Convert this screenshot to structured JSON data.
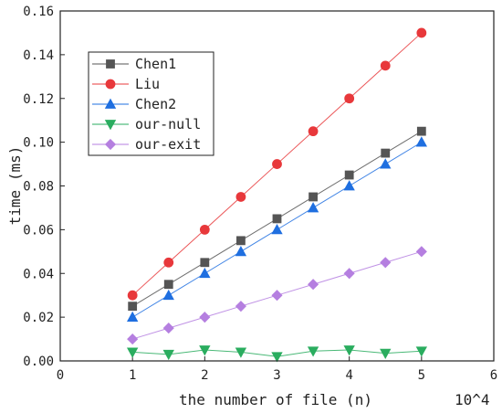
{
  "chart_data": {
    "type": "line",
    "title": "",
    "xlabel": "the number of file (n)",
    "ylabel": "time (ms)",
    "x_scale_note": "10^4",
    "xlim": [
      0,
      6
    ],
    "ylim": [
      0,
      0.16
    ],
    "x_ticks": [
      "0",
      "1",
      "2",
      "3",
      "4",
      "5",
      "6"
    ],
    "y_ticks": [
      "0.00",
      "0.02",
      "0.04",
      "0.06",
      "0.08",
      "0.10",
      "0.12",
      "0.14",
      "0.16"
    ],
    "x": [
      1,
      1.5,
      2,
      2.5,
      3,
      3.5,
      4,
      4.5,
      5
    ],
    "grid": false,
    "legend_position": "top-left",
    "series": [
      {
        "name": "Chen1",
        "color": "#555555",
        "marker": "square",
        "values": [
          0.025,
          0.035,
          0.045,
          0.055,
          0.065,
          0.075,
          0.085,
          0.095,
          0.105
        ]
      },
      {
        "name": "Liu",
        "color": "#e8383b",
        "marker": "circle",
        "values": [
          0.03,
          0.045,
          0.06,
          0.075,
          0.09,
          0.105,
          0.12,
          0.135,
          0.15
        ]
      },
      {
        "name": "Chen2",
        "color": "#1f6fe0",
        "marker": "triangle-up",
        "values": [
          0.02,
          0.03,
          0.04,
          0.05,
          0.06,
          0.07,
          0.08,
          0.09,
          0.1
        ]
      },
      {
        "name": "our-null",
        "color": "#2aad5f",
        "marker": "triangle-down",
        "values": [
          0.004,
          0.003,
          0.005,
          0.004,
          0.002,
          0.0045,
          0.005,
          0.0035,
          0.0045
        ]
      },
      {
        "name": "our-exit",
        "color": "#b57fe0",
        "marker": "diamond",
        "values": [
          0.01,
          0.015,
          0.02,
          0.025,
          0.03,
          0.035,
          0.04,
          0.045,
          0.05
        ]
      }
    ]
  }
}
